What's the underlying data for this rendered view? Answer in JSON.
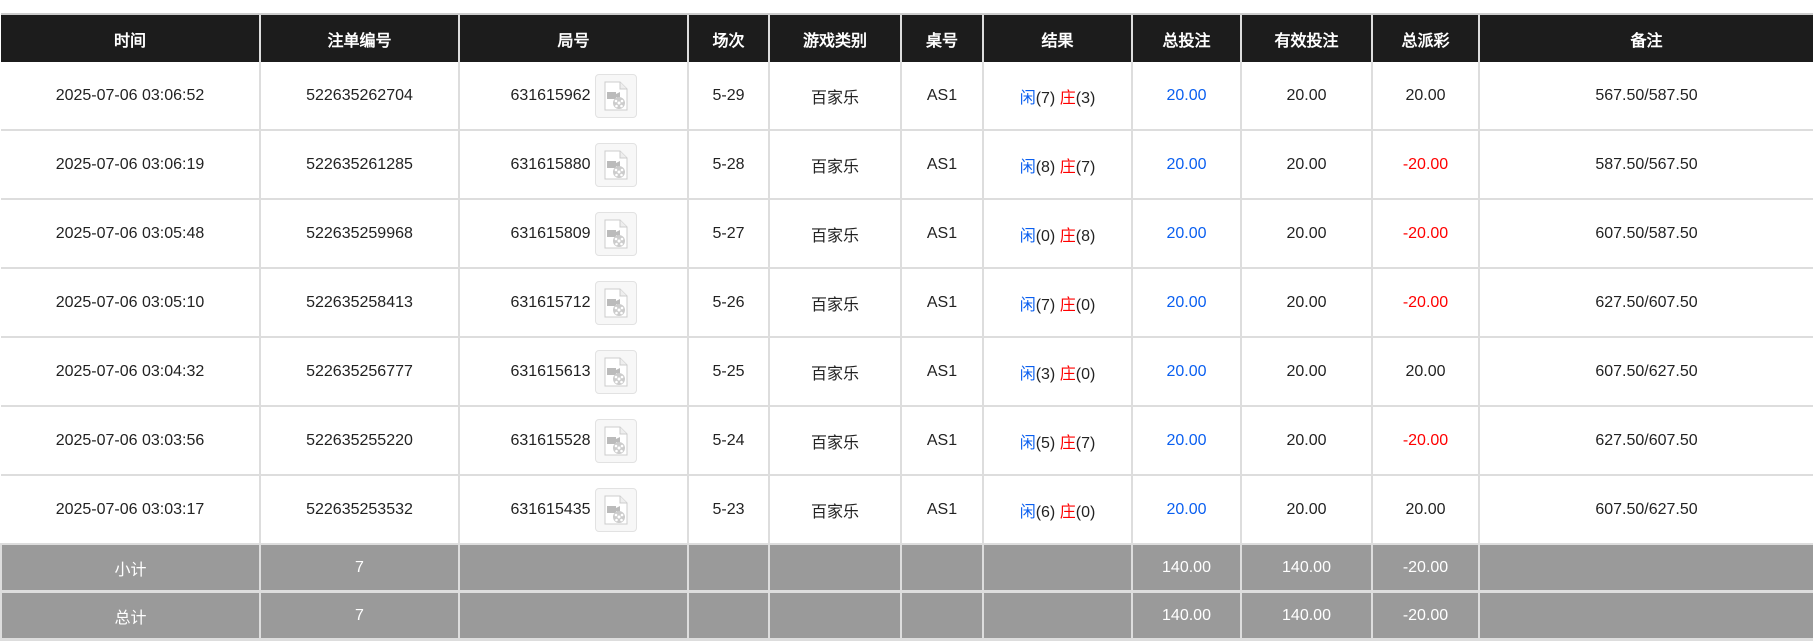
{
  "headers": [
    "时间",
    "注单编号",
    "局号",
    "场次",
    "游戏类别",
    "桌号",
    "结果",
    "总投注",
    "有效投注",
    "总派彩",
    "备注"
  ],
  "rows": [
    {
      "time": "2025-07-06 03:06:52",
      "bet_id": "522635262704",
      "round": "631615962",
      "session": "5-29",
      "game": "百家乐",
      "table": "AS1",
      "player_label": "闲",
      "player": "(7)",
      "banker_label": "庄",
      "banker": "(3)",
      "total_bet": "20.00",
      "valid_bet": "20.00",
      "payout": "20.00",
      "payout_negative": false,
      "note": "567.50/587.50"
    },
    {
      "time": "2025-07-06 03:06:19",
      "bet_id": "522635261285",
      "round": "631615880",
      "session": "5-28",
      "game": "百家乐",
      "table": "AS1",
      "player_label": "闲",
      "player": "(8)",
      "banker_label": "庄",
      "banker": "(7)",
      "total_bet": "20.00",
      "valid_bet": "20.00",
      "payout": "-20.00",
      "payout_negative": true,
      "note": "587.50/567.50"
    },
    {
      "time": "2025-07-06 03:05:48",
      "bet_id": "522635259968",
      "round": "631615809",
      "session": "5-27",
      "game": "百家乐",
      "table": "AS1",
      "player_label": "闲",
      "player": "(0)",
      "banker_label": "庄",
      "banker": "(8)",
      "total_bet": "20.00",
      "valid_bet": "20.00",
      "payout": "-20.00",
      "payout_negative": true,
      "note": "607.50/587.50"
    },
    {
      "time": "2025-07-06 03:05:10",
      "bet_id": "522635258413",
      "round": "631615712",
      "session": "5-26",
      "game": "百家乐",
      "table": "AS1",
      "player_label": "闲",
      "player": "(7)",
      "banker_label": "庄",
      "banker": "(0)",
      "total_bet": "20.00",
      "valid_bet": "20.00",
      "payout": "-20.00",
      "payout_negative": true,
      "note": "627.50/607.50"
    },
    {
      "time": "2025-07-06 03:04:32",
      "bet_id": "522635256777",
      "round": "631615613",
      "session": "5-25",
      "game": "百家乐",
      "table": "AS1",
      "player_label": "闲",
      "player": "(3)",
      "banker_label": "庄",
      "banker": "(0)",
      "total_bet": "20.00",
      "valid_bet": "20.00",
      "payout": "20.00",
      "payout_negative": false,
      "note": "607.50/627.50"
    },
    {
      "time": "2025-07-06 03:03:56",
      "bet_id": "522635255220",
      "round": "631615528",
      "session": "5-24",
      "game": "百家乐",
      "table": "AS1",
      "player_label": "闲",
      "player": "(5)",
      "banker_label": "庄",
      "banker": "(7)",
      "total_bet": "20.00",
      "valid_bet": "20.00",
      "payout": "-20.00",
      "payout_negative": true,
      "note": "627.50/607.50"
    },
    {
      "time": "2025-07-06 03:03:17",
      "bet_id": "522635253532",
      "round": "631615435",
      "session": "5-23",
      "game": "百家乐",
      "table": "AS1",
      "player_label": "闲",
      "player": "(6)",
      "banker_label": "庄",
      "banker": "(0)",
      "total_bet": "20.00",
      "valid_bet": "20.00",
      "payout": "20.00",
      "payout_negative": false,
      "note": "607.50/627.50"
    }
  ],
  "summary": [
    {
      "label": "小计",
      "count": "7",
      "total_bet": "140.00",
      "valid_bet": "140.00",
      "payout": "-20.00"
    },
    {
      "label": "总计",
      "count": "7",
      "total_bet": "140.00",
      "valid_bet": "140.00",
      "payout": "-20.00"
    }
  ],
  "colors": {
    "header_bg": "#1c1c1c",
    "summary_bg": "#9a9a9a",
    "player": "#0a5ff0",
    "banker": "#ff0000",
    "negative": "#ff0000"
  },
  "icons": {
    "round_video": "video-replay-icon"
  }
}
